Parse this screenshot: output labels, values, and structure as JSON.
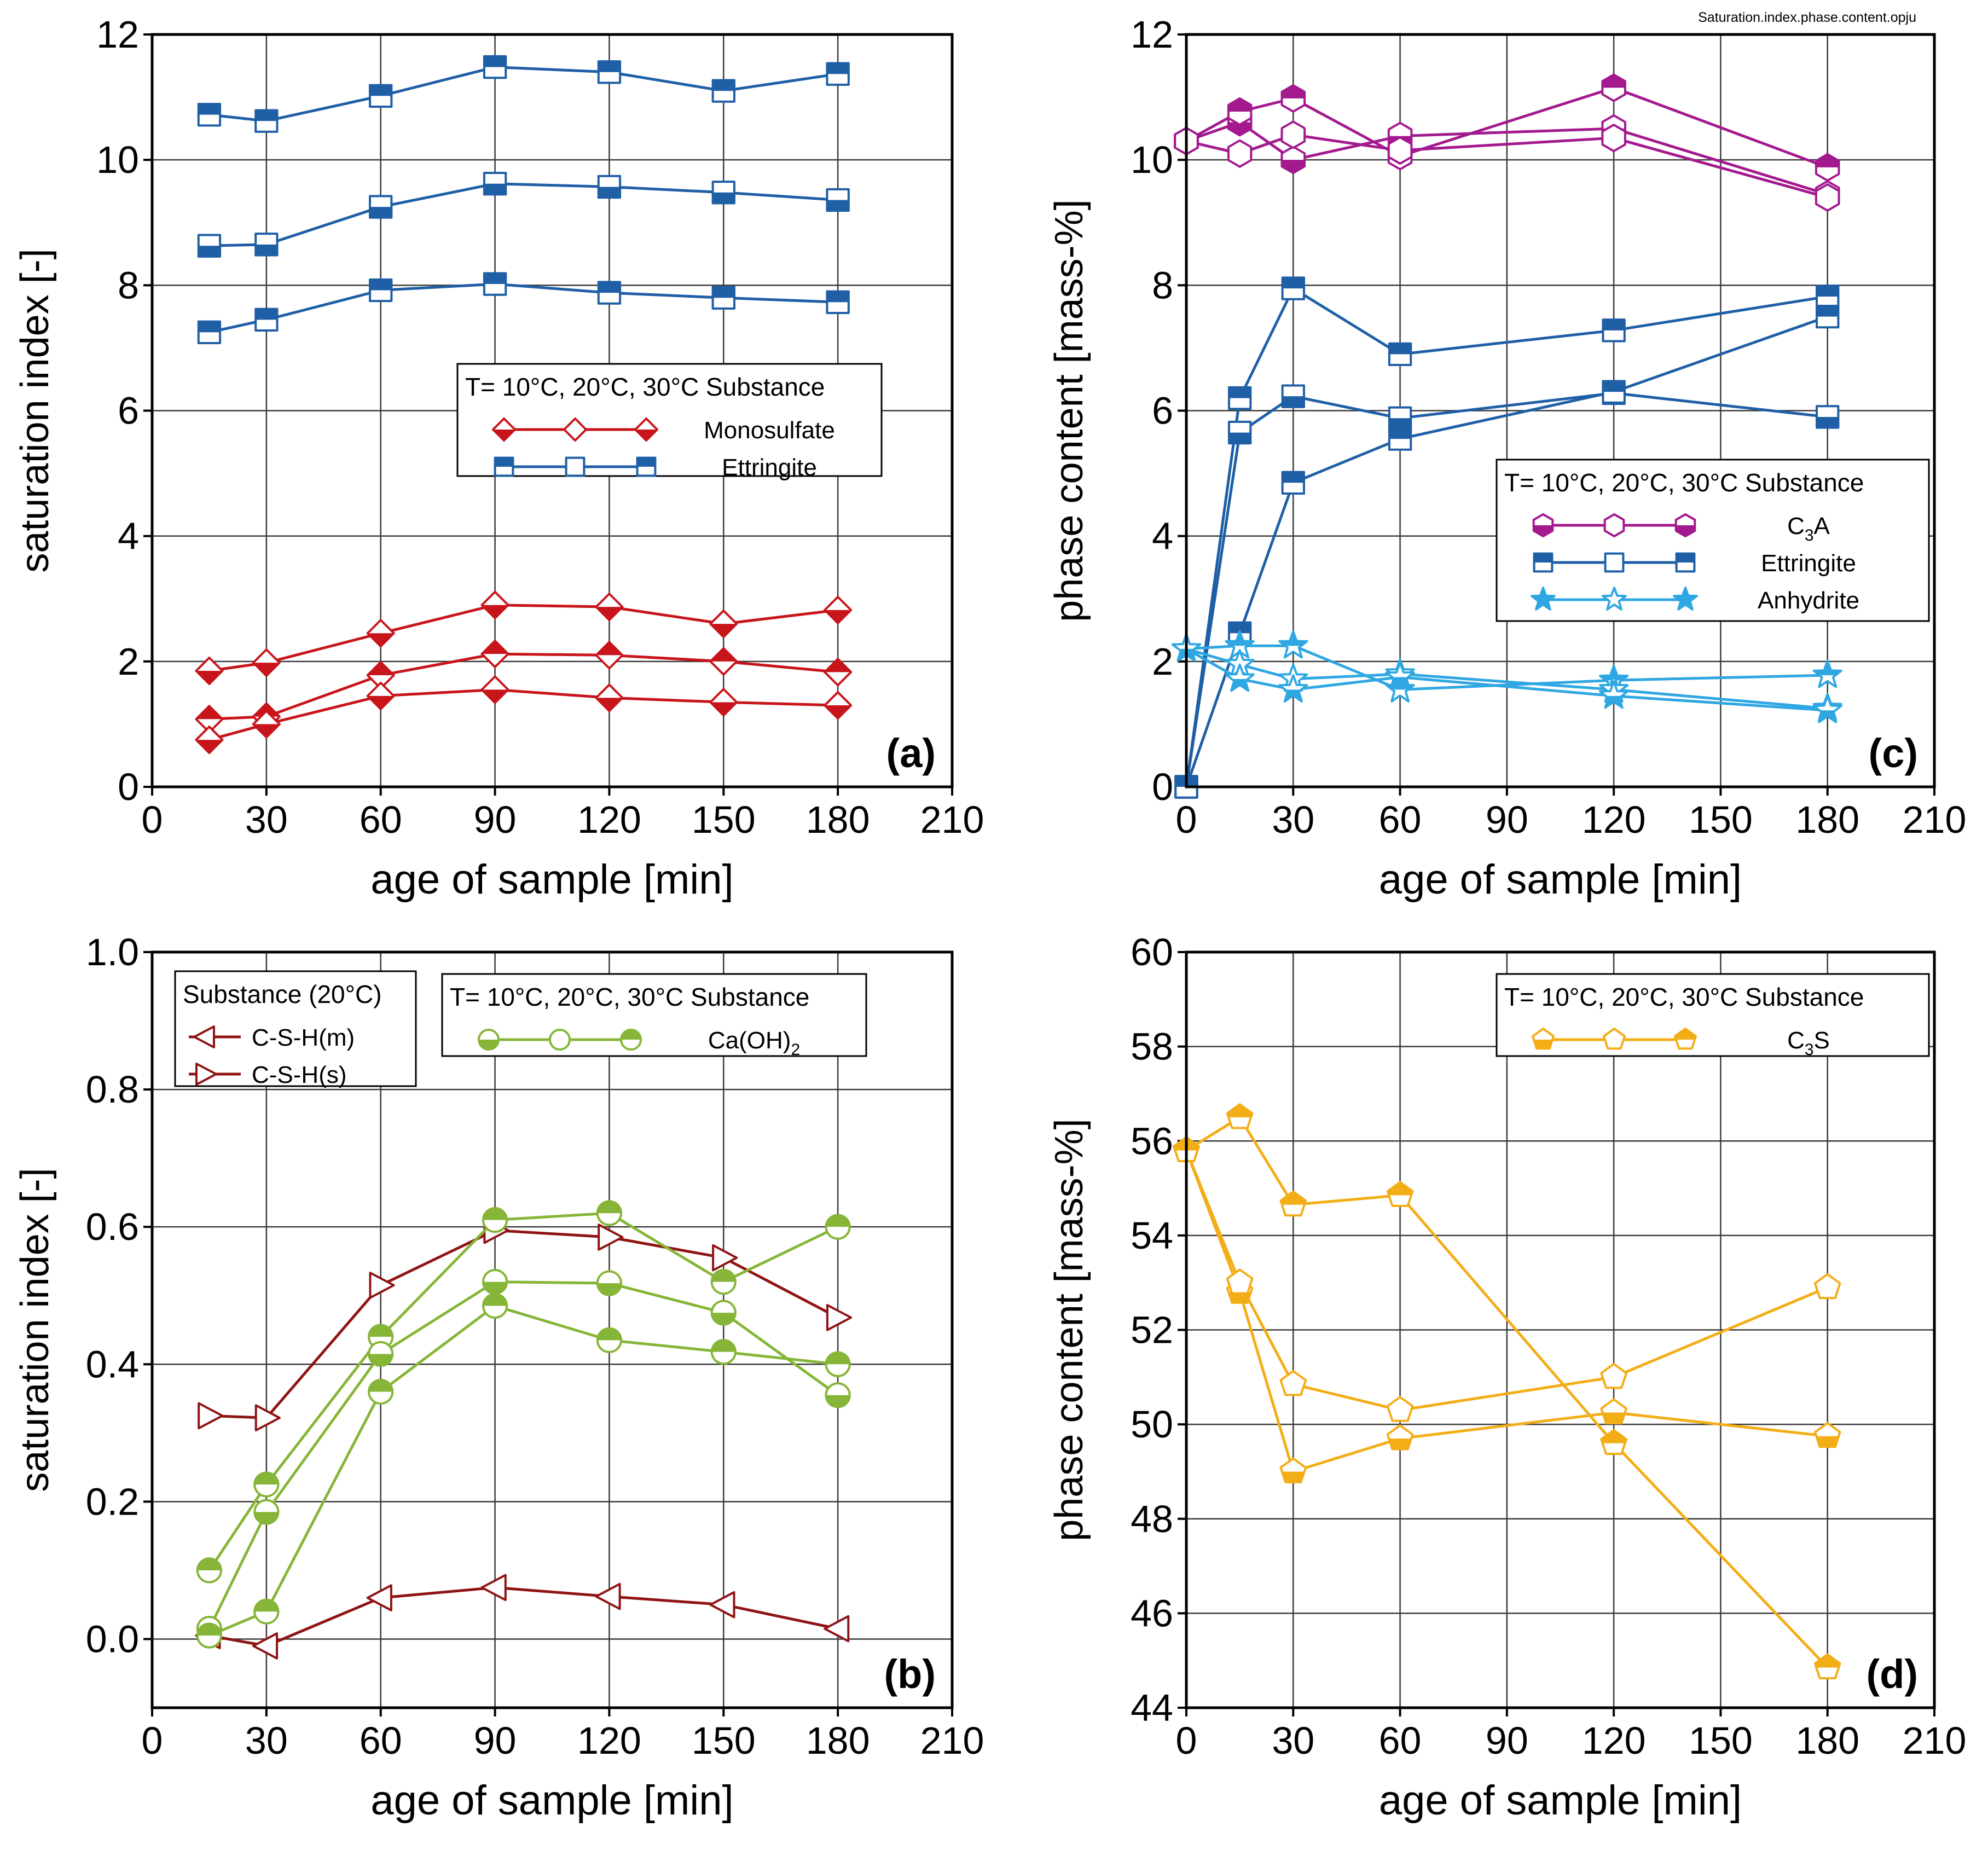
{
  "file_label": "Saturation.index.phase.content.opju",
  "colors": {
    "monosulfate": "#c8151b",
    "ettringite": "#1f5fa6",
    "c3a": "#a3198e",
    "anhydrite": "#2fa7e2",
    "caoh2": "#86b537",
    "csh": "#8f1414",
    "c3s": "#f3ad16"
  },
  "chart_data": [
    {
      "id": "a",
      "panel_label": "(a)",
      "type": "line",
      "xlabel": "age of sample [min]",
      "ylabel": "saturation index [-]",
      "xlim": [
        0,
        210
      ],
      "ylim": [
        0,
        12
      ],
      "xticks": [
        "0",
        "30",
        "60",
        "90",
        "120",
        "150",
        "180",
        "210"
      ],
      "yticks": [
        "0",
        "2",
        "4",
        "6",
        "8",
        "10",
        "12"
      ],
      "legend": {
        "placement": "middle-right",
        "header": "T= 10°C, 20°C, 30°C  Substance",
        "entries": [
          {
            "label": "Monosulfate",
            "color": "#c8151b",
            "marker": "diamond"
          },
          {
            "label": "Ettringite",
            "color": "#1f5fa6",
            "marker": "square"
          }
        ]
      },
      "series": [
        {
          "name": "Ettringite 10°C",
          "color": "#1f5fa6",
          "marker": "square",
          "fill": "half-top",
          "x": [
            15,
            30,
            60,
            90,
            120,
            150,
            180
          ],
          "y": [
            10.72,
            10.62,
            11.02,
            11.48,
            11.4,
            11.1,
            11.37
          ]
        },
        {
          "name": "Ettringite 20°C",
          "color": "#1f5fa6",
          "marker": "square",
          "fill": "half-bottom",
          "x": [
            15,
            30,
            60,
            90,
            120,
            150,
            180
          ],
          "y": [
            8.63,
            8.65,
            9.25,
            9.62,
            9.57,
            9.48,
            9.36
          ]
        },
        {
          "name": "Ettringite 30°C",
          "color": "#1f5fa6",
          "marker": "square",
          "fill": "half-top",
          "x": [
            15,
            30,
            60,
            90,
            120,
            150,
            180
          ],
          "y": [
            7.25,
            7.45,
            7.92,
            8.02,
            7.88,
            7.8,
            7.73
          ]
        },
        {
          "name": "Monosulfate 10°C",
          "color": "#c8151b",
          "marker": "diamond",
          "fill": "half-bottom",
          "x": [
            15,
            30,
            60,
            90,
            120,
            150,
            180
          ],
          "y": [
            1.85,
            1.98,
            2.45,
            2.9,
            2.87,
            2.6,
            2.82
          ]
        },
        {
          "name": "Monosulfate 20°C",
          "color": "#c8151b",
          "marker": "diamond",
          "fill": "half-top",
          "x": [
            15,
            30,
            60,
            90,
            120,
            150,
            180
          ],
          "y": [
            1.08,
            1.12,
            1.78,
            2.12,
            2.1,
            2.0,
            1.83
          ]
        },
        {
          "name": "Monosulfate 30°C",
          "color": "#c8151b",
          "marker": "diamond",
          "fill": "half-bottom",
          "x": [
            15,
            30,
            60,
            90,
            120,
            150,
            180
          ],
          "y": [
            0.75,
            1.0,
            1.45,
            1.55,
            1.42,
            1.35,
            1.3
          ]
        }
      ]
    },
    {
      "id": "b",
      "panel_label": "(b)",
      "type": "line",
      "xlabel": "age of sample [min]",
      "ylabel": "saturation index [-]",
      "xlim": [
        0,
        210
      ],
      "ylim": [
        -0.1,
        1.0
      ],
      "xticks": [
        "0",
        "30",
        "60",
        "90",
        "120",
        "150",
        "180",
        "210"
      ],
      "yticks": [
        "0.0",
        "0.2",
        "0.4",
        "0.6",
        "0.8",
        "1.0"
      ],
      "legend": {
        "placement": "top",
        "header": "T= 10°C, 20°C, 30°C  Substance",
        "entries": [
          {
            "label": "Ca(OH)",
            "subscript": "2",
            "color": "#86b537",
            "marker": "circle"
          }
        ]
      },
      "legend2": {
        "placement": "top-left",
        "header": "Substance (20°C)",
        "entries": [
          {
            "label": "C-S-H(m)",
            "color": "#8f1414",
            "marker": "triangle-left"
          },
          {
            "label": "C-S-H(s)",
            "color": "#8f1414",
            "marker": "triangle-right"
          }
        ]
      },
      "series": [
        {
          "name": "C-S-H(s)",
          "color": "#8f1414",
          "marker": "triangle-right",
          "fill": "none",
          "x": [
            15,
            30,
            60,
            90,
            120,
            150,
            180
          ],
          "y": [
            0.325,
            0.322,
            0.515,
            0.595,
            0.585,
            0.555,
            0.468
          ]
        },
        {
          "name": "C-S-H(m)",
          "color": "#8f1414",
          "marker": "triangle-left",
          "fill": "none",
          "x": [
            15,
            30,
            60,
            90,
            120,
            150,
            180
          ],
          "y": [
            0.005,
            -0.01,
            0.06,
            0.075,
            0.062,
            0.05,
            0.015
          ]
        },
        {
          "name": "Ca(OH)2 10°C",
          "color": "#86b537",
          "marker": "circle",
          "fill": "half-top",
          "x": [
            15,
            30,
            60,
            90,
            120,
            150,
            180
          ],
          "y": [
            0.1,
            0.225,
            0.44,
            0.61,
            0.62,
            0.52,
            0.6
          ]
        },
        {
          "name": "Ca(OH)2 20°C",
          "color": "#86b537",
          "marker": "circle",
          "fill": "half-bottom",
          "x": [
            15,
            30,
            60,
            90,
            120,
            150,
            180
          ],
          "y": [
            0.015,
            0.185,
            0.415,
            0.52,
            0.518,
            0.475,
            0.355
          ]
        },
        {
          "name": "Ca(OH)2 30°C",
          "color": "#86b537",
          "marker": "circle",
          "fill": "half-top",
          "x": [
            15,
            30,
            60,
            90,
            120,
            150,
            180
          ],
          "y": [
            0.005,
            0.04,
            0.36,
            0.485,
            0.435,
            0.418,
            0.4
          ]
        }
      ]
    },
    {
      "id": "c",
      "panel_label": "(c)",
      "type": "line",
      "xlabel": "age of sample [min]",
      "ylabel": "phase content [mass-%]",
      "xlim": [
        0,
        210
      ],
      "ylim": [
        0,
        12
      ],
      "xticks": [
        "0",
        "30",
        "60",
        "90",
        "120",
        "150",
        "180",
        "210"
      ],
      "yticks": [
        "0",
        "2",
        "4",
        "6",
        "8",
        "10",
        "12"
      ],
      "legend": {
        "placement": "middle-right",
        "header": "T= 10°C, 20°C, 30°C  Substance",
        "entries": [
          {
            "label": "C",
            "subscript": "3",
            "suffix": "A",
            "color": "#a3198e",
            "marker": "hexagon"
          },
          {
            "label": "Ettringite",
            "color": "#1f5fa6",
            "marker": "square"
          },
          {
            "label": "Anhydrite",
            "color": "#2fa7e2",
            "marker": "star"
          }
        ]
      },
      "series": [
        {
          "name": "C3A 10°C",
          "color": "#a3198e",
          "marker": "hexagon",
          "fill": "half-bottom",
          "x": [
            0,
            15,
            30,
            60,
            120,
            180
          ],
          "y": [
            10.3,
            10.6,
            10.0,
            10.38,
            10.5,
            9.45
          ]
        },
        {
          "name": "C3A 20°C",
          "color": "#a3198e",
          "marker": "hexagon",
          "fill": "half-top",
          "x": [
            0,
            15,
            30,
            60,
            120,
            180
          ],
          "y": [
            10.3,
            10.77,
            10.98,
            10.06,
            11.15,
            9.88
          ]
        },
        {
          "name": "C3A 30°C",
          "color": "#a3198e",
          "marker": "hexagon",
          "fill": "none",
          "x": [
            0,
            15,
            30,
            60,
            120,
            180
          ],
          "y": [
            10.3,
            10.1,
            10.4,
            10.15,
            10.35,
            9.4
          ]
        },
        {
          "name": "Ettringite 10°C",
          "color": "#1f5fa6",
          "marker": "square",
          "fill": "half-top",
          "x": [
            0,
            15,
            30,
            60,
            120,
            180
          ],
          "y": [
            0.0,
            6.2,
            7.95,
            6.9,
            7.28,
            7.82
          ]
        },
        {
          "name": "Ettringite 20°C",
          "color": "#1f5fa6",
          "marker": "square",
          "fill": "half-bottom",
          "x": [
            0,
            15,
            30,
            60,
            120,
            180
          ],
          "y": [
            0.0,
            5.65,
            6.23,
            5.88,
            6.28,
            5.9
          ]
        },
        {
          "name": "Ettringite 30°C",
          "color": "#1f5fa6",
          "marker": "square",
          "fill": "half-top",
          "x": [
            0,
            15,
            30,
            60,
            120,
            180
          ],
          "y": [
            0.0,
            2.45,
            4.85,
            5.55,
            6.3,
            7.5
          ]
        },
        {
          "name": "Anhydrite 10°C",
          "color": "#2fa7e2",
          "marker": "star",
          "fill": "half-top",
          "x": [
            0,
            15,
            30,
            60,
            120,
            180
          ],
          "y": [
            2.2,
            2.25,
            2.25,
            1.55,
            1.7,
            1.78
          ]
        },
        {
          "name": "Anhydrite 20°C",
          "color": "#2fa7e2",
          "marker": "star",
          "fill": "none",
          "x": [
            0,
            15,
            30,
            60,
            120,
            180
          ],
          "y": [
            2.2,
            1.95,
            1.72,
            1.8,
            1.55,
            1.25
          ]
        },
        {
          "name": "Anhydrite 30°C",
          "color": "#2fa7e2",
          "marker": "star",
          "fill": "half-bottom",
          "x": [
            0,
            15,
            30,
            60,
            120,
            180
          ],
          "y": [
            2.2,
            1.72,
            1.55,
            1.75,
            1.45,
            1.22
          ]
        }
      ]
    },
    {
      "id": "d",
      "panel_label": "(d)",
      "type": "line",
      "xlabel": "age of sample [min]",
      "ylabel": "phase content [mass-%]",
      "xlim": [
        0,
        210
      ],
      "ylim": [
        44,
        60
      ],
      "xticks": [
        "0",
        "30",
        "60",
        "90",
        "120",
        "150",
        "180",
        "210"
      ],
      "yticks": [
        "44",
        "46",
        "48",
        "50",
        "52",
        "54",
        "56",
        "58",
        "60"
      ],
      "legend": {
        "placement": "top-right",
        "header": "T= 10°C, 20°C, 30°C  Substance",
        "entries": [
          {
            "label": "C",
            "subscript": "3",
            "suffix": "S",
            "color": "#f3ad16",
            "marker": "pentagon"
          }
        ]
      },
      "series": [
        {
          "name": "C3S 10°C",
          "color": "#f3ad16",
          "marker": "pentagon",
          "fill": "half-bottom",
          "x": [
            0,
            15,
            30,
            60,
            120,
            180
          ],
          "y": [
            55.8,
            52.8,
            49.0,
            49.7,
            50.25,
            49.75
          ]
        },
        {
          "name": "C3S 20°C",
          "color": "#f3ad16",
          "marker": "pentagon",
          "fill": "none",
          "x": [
            0,
            15,
            30,
            60,
            120,
            180
          ],
          "y": [
            55.8,
            53.0,
            50.85,
            50.3,
            51.0,
            52.9
          ]
        },
        {
          "name": "C3S 30°C",
          "color": "#f3ad16",
          "marker": "pentagon",
          "fill": "half-top",
          "x": [
            0,
            15,
            30,
            60,
            120,
            180
          ],
          "y": [
            55.8,
            56.5,
            54.65,
            54.85,
            49.6,
            44.85
          ]
        }
      ]
    }
  ]
}
